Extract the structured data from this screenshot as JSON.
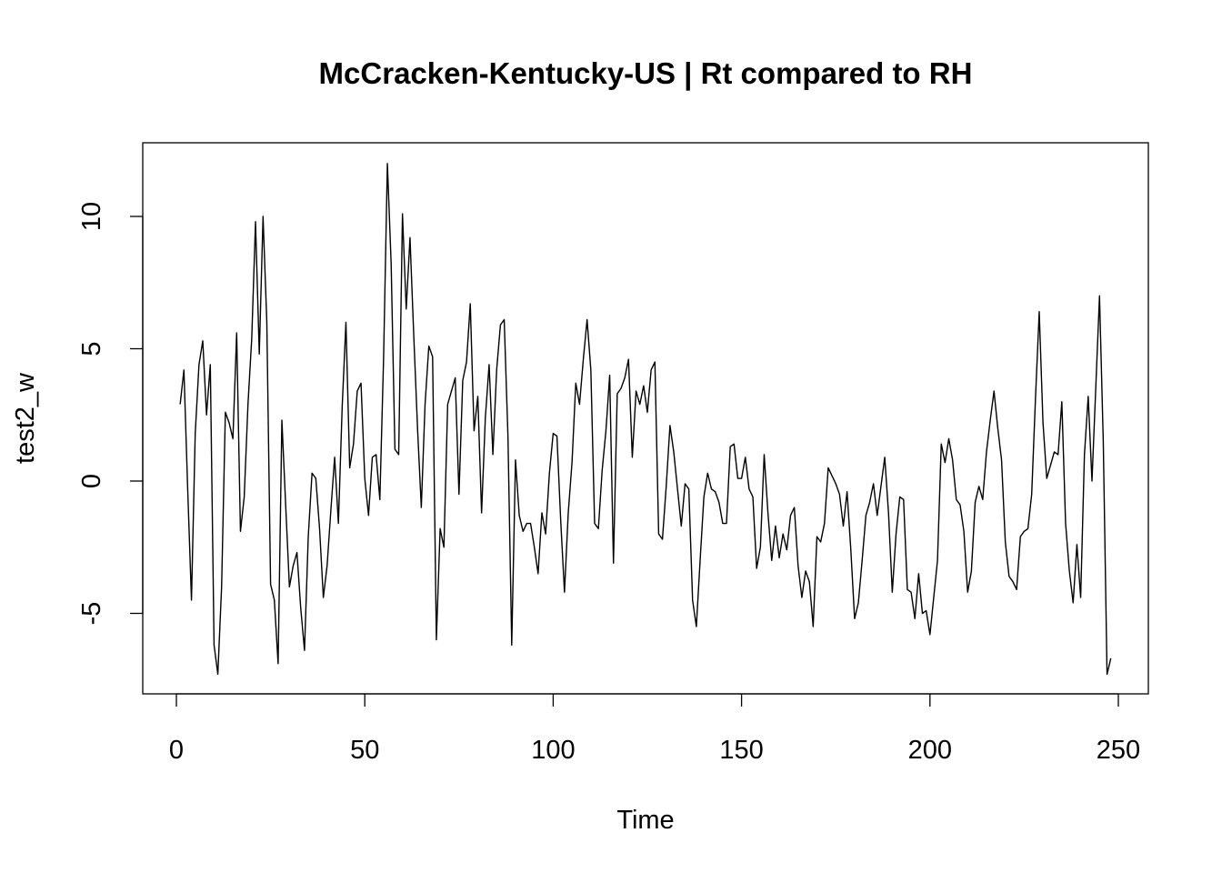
{
  "chart_data": {
    "type": "line",
    "title": "McCracken-Kentucky-US | Rt compared to RH",
    "xlabel": "Time",
    "ylabel": "test2_w",
    "xlim": [
      0,
      250
    ],
    "ylim": [
      -7.5,
      12
    ],
    "x_ticks": [
      0,
      50,
      100,
      150,
      200,
      250
    ],
    "x_tick_labels": [
      "0",
      "50",
      "100",
      "150",
      "200",
      "250"
    ],
    "y_ticks": [
      -5,
      0,
      5,
      10
    ],
    "y_tick_labels": [
      "-5",
      "0",
      "5",
      "10"
    ],
    "grid": false,
    "x_start": 1,
    "series": [
      {
        "values": [
          2.9,
          4.2,
          -0.3,
          -4.5,
          1.8,
          4.4,
          5.3,
          2.5,
          4.4,
          -6.2,
          -7.3,
          -4.0,
          2.6,
          2.2,
          1.6,
          5.6,
          -1.9,
          -0.6,
          2.9,
          5.4,
          9.8,
          4.8,
          10.0,
          6.0,
          -3.9,
          -4.5,
          -6.9,
          2.3,
          -0.9,
          -4.0,
          -3.2,
          -2.7,
          -4.8,
          -6.4,
          -2.1,
          0.3,
          0.1,
          -1.8,
          -4.4,
          -3.2,
          -1.1,
          0.9,
          -1.6,
          2.8,
          6.0,
          0.5,
          1.4,
          3.4,
          3.7,
          0.1,
          -1.3,
          0.9,
          1.0,
          -0.7,
          4.7,
          12.0,
          8.2,
          1.2,
          1.0,
          10.1,
          6.5,
          9.2,
          5.5,
          2.0,
          -1.0,
          2.9,
          5.1,
          4.7,
          -6.0,
          -1.8,
          -2.5,
          2.9,
          3.4,
          3.9,
          -0.5,
          3.8,
          4.5,
          6.7,
          1.9,
          3.2,
          -1.2,
          2.4,
          4.4,
          1.0,
          4.2,
          5.9,
          6.1,
          1.7,
          -6.2,
          0.8,
          -1.3,
          -1.9,
          -1.6,
          -1.6,
          -2.5,
          -3.5,
          -1.2,
          -2.0,
          0.3,
          1.8,
          1.7,
          -1.5,
          -4.2,
          -1.2,
          0.7,
          3.7,
          2.9,
          4.6,
          6.1,
          4.2,
          -1.6,
          -1.8,
          0.4,
          1.9,
          4.0,
          -3.1,
          3.3,
          3.5,
          3.9,
          4.6,
          0.9,
          3.4,
          2.9,
          3.6,
          2.6,
          4.2,
          4.5,
          -2.0,
          -2.2,
          -0.2,
          2.1,
          1.1,
          -0.3,
          -1.7,
          -0.1,
          -0.3,
          -4.5,
          -5.5,
          -3.0,
          -0.6,
          0.3,
          -0.3,
          -0.4,
          -0.8,
          -1.6,
          -1.6,
          1.3,
          1.4,
          0.1,
          0.1,
          0.9,
          -0.3,
          -0.6,
          -3.3,
          -2.5,
          1.0,
          -1.2,
          -3.0,
          -1.7,
          -2.9,
          -2.0,
          -2.6,
          -1.3,
          -1.0,
          -3.2,
          -4.4,
          -3.4,
          -3.8,
          -5.5,
          -2.1,
          -2.3,
          -1.6,
          0.5,
          0.2,
          -0.1,
          -0.5,
          -1.7,
          -0.4,
          -2.6,
          -5.2,
          -4.6,
          -3.0,
          -1.3,
          -0.8,
          -0.1,
          -1.3,
          -0.2,
          0.9,
          -1.2,
          -4.2,
          -2.0,
          -0.6,
          -0.7,
          -4.1,
          -4.2,
          -5.2,
          -3.5,
          -5.0,
          -4.9,
          -5.8,
          -4.4,
          -3.0,
          1.4,
          0.7,
          1.6,
          0.8,
          -0.7,
          -0.9,
          -1.9,
          -4.2,
          -3.4,
          -0.8,
          -0.2,
          -0.7,
          1.1,
          2.3,
          3.4,
          2.0,
          0.8,
          -2.3,
          -3.6,
          -3.8,
          -4.1,
          -2.1,
          -1.9,
          -1.8,
          -0.5,
          3.1,
          6.4,
          2.2,
          0.1,
          0.6,
          1.1,
          1.0,
          3.0,
          -1.6,
          -3.4,
          -4.6,
          -2.4,
          -4.4,
          1.0,
          3.2,
          0.0,
          3.5,
          7.0,
          1.5,
          -7.3,
          -6.7
        ]
      }
    ]
  }
}
